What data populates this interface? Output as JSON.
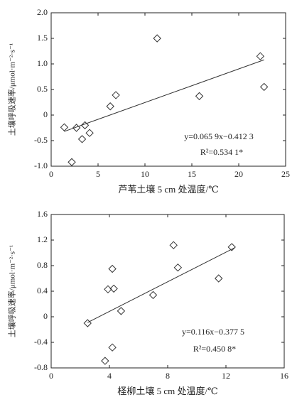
{
  "chart_data": [
    {
      "type": "scatter",
      "x_label": "芦苇土壤 5 cm 处温度/℃",
      "y_label": "土壤呼吸速率/μmol·m⁻²·s⁻¹",
      "x": [
        1.4,
        2.7,
        3.6,
        3.3,
        4.1,
        2.2,
        6.3,
        6.9,
        11.3,
        15.8,
        22.3,
        22.7
      ],
      "y": [
        -0.24,
        -0.25,
        -0.2,
        -0.47,
        -0.35,
        -0.92,
        0.17,
        0.39,
        1.5,
        0.37,
        1.15,
        0.55
      ],
      "fit": {
        "x": [
          1.4,
          22.7
        ],
        "y": [
          -0.32,
          1.08
        ]
      },
      "annotations": [
        "y=0.065 9x−0.412 3",
        "R²=0.534 1*"
      ],
      "xlim": [
        0,
        25
      ],
      "xticks": [
        0,
        5,
        10,
        15,
        20,
        25
      ],
      "ylim": [
        -1.0,
        2.0
      ],
      "yticks": [
        {
          "value": -1.0,
          "label": "-1.0"
        },
        -0.5,
        0,
        0.5,
        {
          "value": 1.0,
          "label": "1.0"
        },
        1.5,
        {
          "value": 2.0,
          "label": "2.0"
        }
      ],
      "color": "#333333"
    },
    {
      "type": "scatter",
      "x_label": "柽柳土壤 5 cm 处温度/℃",
      "y_label": "土壤呼吸速率/μmol·m⁻²·s⁻¹",
      "x": [
        2.5,
        3.7,
        3.9,
        4.3,
        4.2,
        4.2,
        4.8,
        7.0,
        8.4,
        8.7,
        11.5,
        12.4
      ],
      "y": [
        -0.1,
        -0.69,
        0.43,
        0.44,
        0.75,
        -0.48,
        0.09,
        0.34,
        1.12,
        0.77,
        0.6,
        1.09
      ],
      "fit": {
        "x": [
          2.5,
          12.6
        ],
        "y": [
          -0.09,
          1.08
        ]
      },
      "annotations": [
        "y=0.116x−0.377 5",
        "R²=0.450 8*"
      ],
      "xlim": [
        0,
        16
      ],
      "xticks": [
        0,
        4,
        8,
        12,
        16
      ],
      "ylim": [
        -0.8,
        1.6
      ],
      "yticks": [
        -0.8,
        -0.4,
        0,
        0.4,
        0.8,
        1.2,
        1.6
      ],
      "color": "#333333"
    }
  ]
}
